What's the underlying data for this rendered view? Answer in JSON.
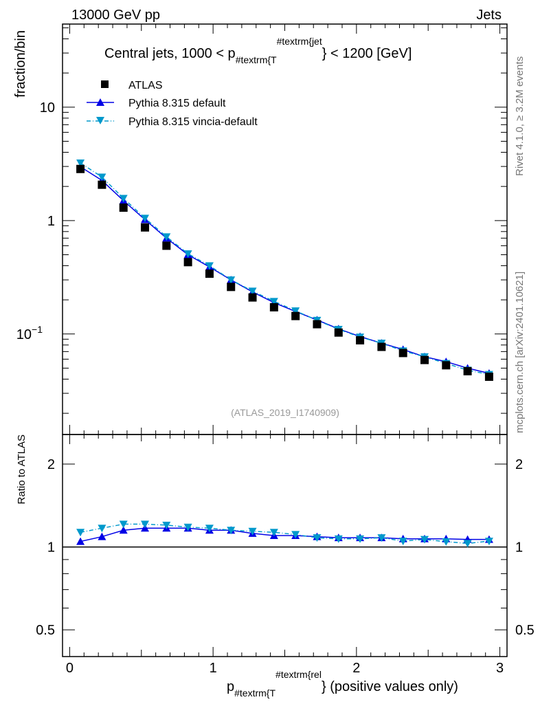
{
  "header": {
    "left": "13000 GeV pp",
    "right": "Jets"
  },
  "side_labels": {
    "rivet": "Rivet 4.1.0, ≥ 3.2M events",
    "mcplots": "mcplots.cern.ch [arXiv:2401.10621]"
  },
  "analysis_id": "(ATLAS_2019_I1740909)",
  "title": {
    "pre": "Central jets, 1000 < p",
    "sub": "#textrm{T",
    "sup": "#textrm{jet",
    "post": "} < 1200 [GeV]"
  },
  "xlabel": {
    "pre": "p",
    "sub": "#textrm{T",
    "sup": "#textrm{rel",
    "post": "} (positive values only)"
  },
  "colors": {
    "data": "#000000",
    "default": "#0000e6",
    "vincia": "#0099cc"
  },
  "chart_data": [
    {
      "type": "scatter",
      "panel": "main",
      "ylabel": "fraction/bin",
      "yscale": "log",
      "ylim": [
        0.013,
        54
      ],
      "xlim": [
        -0.05,
        3.05
      ],
      "ytick_labels": [
        {
          "v": 10,
          "t": "10"
        },
        {
          "v": 1,
          "t": "1"
        },
        {
          "v": 0.1,
          "t": "10",
          "exp": "−1"
        }
      ],
      "xtick_labels": [
        "0",
        "1",
        "2",
        "3"
      ],
      "x": [
        0.075,
        0.225,
        0.375,
        0.525,
        0.675,
        0.825,
        0.975,
        1.125,
        1.275,
        1.425,
        1.575,
        1.725,
        1.875,
        2.025,
        2.175,
        2.325,
        2.475,
        2.625,
        2.775,
        2.925
      ],
      "legend": [
        "ATLAS",
        "Pythia 8.315 default",
        "Pythia 8.315 vincia-default"
      ],
      "legend_position": "top-left",
      "series": [
        {
          "name": "ATLAS",
          "values": [
            2.85,
            2.07,
            1.3,
            0.87,
            0.6,
            0.43,
            0.34,
            0.26,
            0.21,
            0.172,
            0.144,
            0.122,
            0.103,
            0.088,
            0.077,
            0.068,
            0.059,
            0.053,
            0.047,
            0.042
          ]
        },
        {
          "name": "Pythia 8.315 default",
          "values": [
            2.98,
            2.26,
            1.5,
            1.02,
            0.7,
            0.5,
            0.39,
            0.3,
            0.235,
            0.189,
            0.158,
            0.133,
            0.111,
            0.095,
            0.083,
            0.073,
            0.063,
            0.057,
            0.05,
            0.045
          ]
        },
        {
          "name": "Pythia 8.315 vincia-default",
          "values": [
            3.22,
            2.42,
            1.57,
            1.05,
            0.72,
            0.51,
            0.4,
            0.3,
            0.239,
            0.194,
            0.16,
            0.132,
            0.11,
            0.094,
            0.083,
            0.071,
            0.063,
            0.055,
            0.048,
            0.044
          ]
        }
      ]
    },
    {
      "type": "line",
      "panel": "ratio",
      "ylabel": "Ratio to ATLAS",
      "yscale": "log",
      "ylim": [
        0.4,
        2.56
      ],
      "ytick_labels": [
        {
          "v": 2,
          "t": "2"
        },
        {
          "v": 1,
          "t": "1"
        },
        {
          "v": 0.5,
          "t": "0.5"
        }
      ],
      "series": [
        {
          "name": "Pythia 8.315 default",
          "values": [
            1.047,
            1.09,
            1.15,
            1.17,
            1.17,
            1.17,
            1.15,
            1.15,
            1.12,
            1.1,
            1.1,
            1.09,
            1.08,
            1.08,
            1.08,
            1.07,
            1.07,
            1.07,
            1.065,
            1.065
          ]
        },
        {
          "name": "Pythia 8.315 vincia-default",
          "values": [
            1.13,
            1.17,
            1.21,
            1.21,
            1.2,
            1.18,
            1.17,
            1.15,
            1.14,
            1.13,
            1.11,
            1.08,
            1.07,
            1.07,
            1.08,
            1.05,
            1.065,
            1.045,
            1.03,
            1.05
          ]
        }
      ]
    }
  ]
}
